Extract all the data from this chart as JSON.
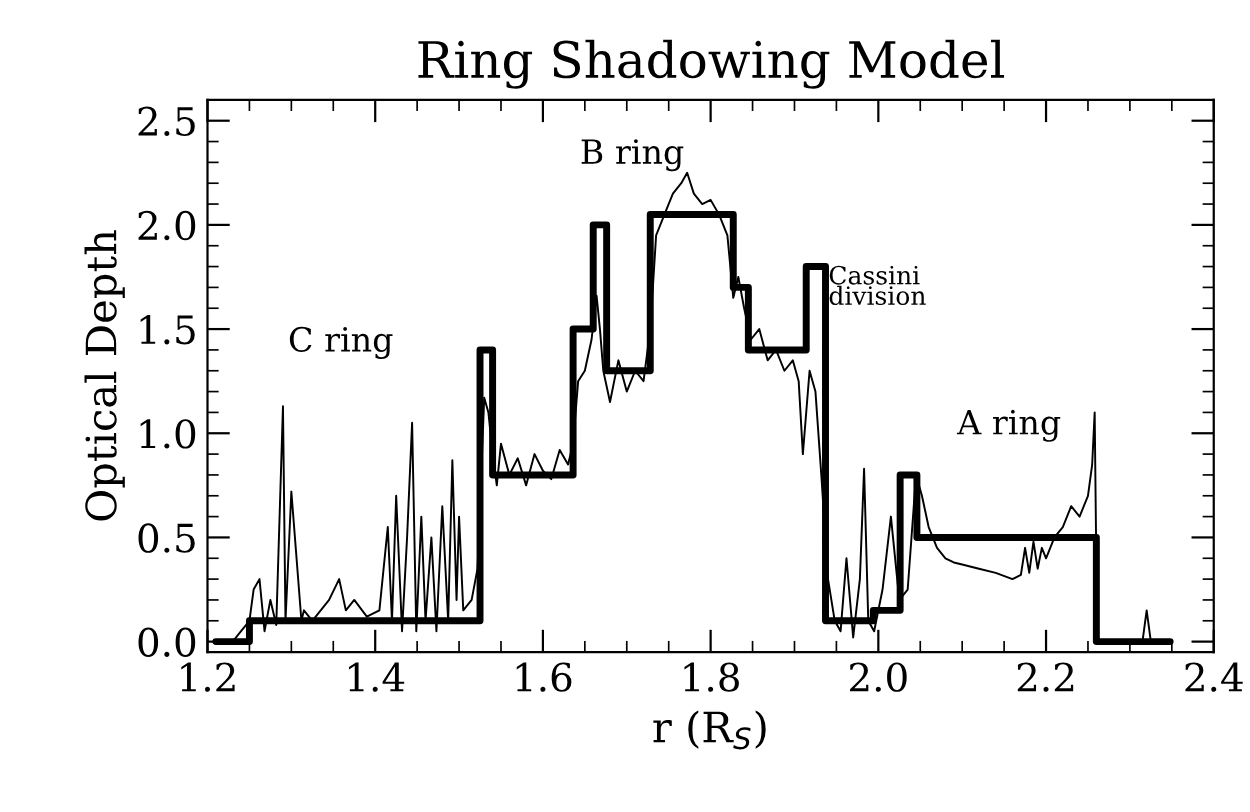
{
  "chart_data": {
    "type": "line",
    "title": "Ring Shadowing Model",
    "xlabel": "r (R$_{S}$)",
    "ylabel": "Optical Depth",
    "xlim": [
      1.2,
      2.4
    ],
    "ylim": [
      -0.05,
      2.6
    ],
    "xticks": [
      1.2,
      1.4,
      1.6,
      1.8,
      {
        "value": 2,
        "label": "2.0"
      },
      2.2,
      2.4
    ],
    "yticks": [
      {
        "value": 0,
        "label": "0.0"
      },
      0.5,
      {
        "value": 1,
        "label": "1.0"
      },
      1.5,
      {
        "value": 2,
        "label": "2.0"
      },
      2.5
    ],
    "grid": false,
    "legend": false,
    "series": [
      {
        "color": "#000000",
        "x": [
          1.21,
          1.23,
          1.24,
          1.25,
          1.255,
          1.262,
          1.268,
          1.275,
          1.282,
          1.29,
          1.293,
          1.3,
          1.312,
          1.315,
          1.325,
          1.335,
          1.345,
          1.357,
          1.365,
          1.375,
          1.39,
          1.405,
          1.415,
          1.42,
          1.425,
          1.432,
          1.438,
          1.444,
          1.449,
          1.455,
          1.46,
          1.467,
          1.473,
          1.48,
          1.487,
          1.492,
          1.497,
          1.5,
          1.505,
          1.515,
          1.522,
          1.53,
          1.535,
          1.54,
          1.545,
          1.55,
          1.56,
          1.57,
          1.58,
          1.59,
          1.6,
          1.61,
          1.62,
          1.63,
          1.636,
          1.642,
          1.65,
          1.658,
          1.664,
          1.668,
          1.672,
          1.68,
          1.69,
          1.7,
          1.71,
          1.72,
          1.728,
          1.735,
          1.745,
          1.755,
          1.765,
          1.772,
          1.78,
          1.79,
          1.8,
          1.81,
          1.82,
          1.827,
          1.833,
          1.84,
          1.848,
          1.858,
          1.868,
          1.878,
          1.888,
          1.898,
          1.905,
          1.91,
          1.918,
          1.925,
          1.932,
          1.94,
          1.948,
          1.955,
          1.962,
          1.97,
          1.978,
          1.983,
          1.988,
          1.995,
          2.005,
          2.015,
          2.025,
          2.035,
          2.045,
          2.052,
          2.06,
          2.07,
          2.08,
          2.09,
          2.1,
          2.12,
          2.14,
          2.16,
          2.17,
          2.175,
          2.18,
          2.185,
          2.19,
          2.195,
          2.2,
          2.21,
          2.22,
          2.23,
          2.24,
          2.25,
          2.255,
          2.258,
          2.261,
          2.265,
          2.29,
          2.315,
          2.32,
          2.325,
          2.348
        ],
        "values": [
          0.0,
          0.0,
          0.05,
          0.1,
          0.25,
          0.3,
          0.05,
          0.2,
          0.08,
          1.13,
          0.1,
          0.72,
          0.1,
          0.15,
          0.1,
          0.15,
          0.2,
          0.3,
          0.15,
          0.2,
          0.12,
          0.15,
          0.55,
          0.1,
          0.7,
          0.05,
          0.5,
          1.05,
          0.05,
          0.6,
          0.1,
          0.5,
          0.05,
          0.65,
          0.1,
          0.87,
          0.2,
          0.6,
          0.15,
          0.2,
          0.35,
          1.17,
          1.1,
          0.9,
          0.75,
          0.95,
          0.8,
          0.88,
          0.75,
          0.9,
          0.82,
          0.78,
          0.92,
          0.85,
          0.95,
          1.25,
          1.3,
          1.45,
          1.66,
          1.5,
          1.3,
          1.15,
          1.35,
          1.2,
          1.3,
          1.25,
          1.5,
          1.95,
          2.05,
          2.15,
          2.2,
          2.25,
          2.15,
          2.1,
          2.12,
          2.05,
          1.95,
          1.65,
          1.75,
          1.6,
          1.45,
          1.5,
          1.35,
          1.4,
          1.3,
          1.35,
          1.25,
          0.9,
          1.3,
          1.2,
          0.8,
          0.3,
          0.1,
          0.05,
          0.4,
          0.02,
          0.3,
          0.83,
          0.1,
          0.05,
          0.25,
          0.6,
          0.2,
          0.25,
          0.8,
          0.7,
          0.55,
          0.45,
          0.4,
          0.38,
          0.37,
          0.35,
          0.33,
          0.3,
          0.32,
          0.45,
          0.33,
          0.48,
          0.35,
          0.45,
          0.4,
          0.5,
          0.55,
          0.65,
          0.6,
          0.7,
          0.85,
          1.1,
          0.0,
          0.0,
          0.0,
          0.0,
          0.15,
          0.0,
          0.0
        ]
      },
      {
        "type": "step",
        "color": "#000000",
        "x": [
          1.21,
          1.25,
          1.525,
          1.54,
          1.636,
          1.66,
          1.676,
          1.728,
          1.827,
          1.845,
          1.914,
          1.937,
          1.994,
          2.026,
          2.046,
          2.26,
          2.348
        ],
        "values": [
          0.0,
          0.1,
          1.4,
          0.8,
          1.5,
          2.0,
          1.3,
          2.05,
          1.7,
          1.4,
          1.8,
          0.1,
          0.15,
          0.8,
          0.5,
          0.0,
          0.0
        ]
      }
    ],
    "annotations": [
      "C ring",
      "B ring",
      "Cassini\ndivision",
      "A ring"
    ]
  }
}
